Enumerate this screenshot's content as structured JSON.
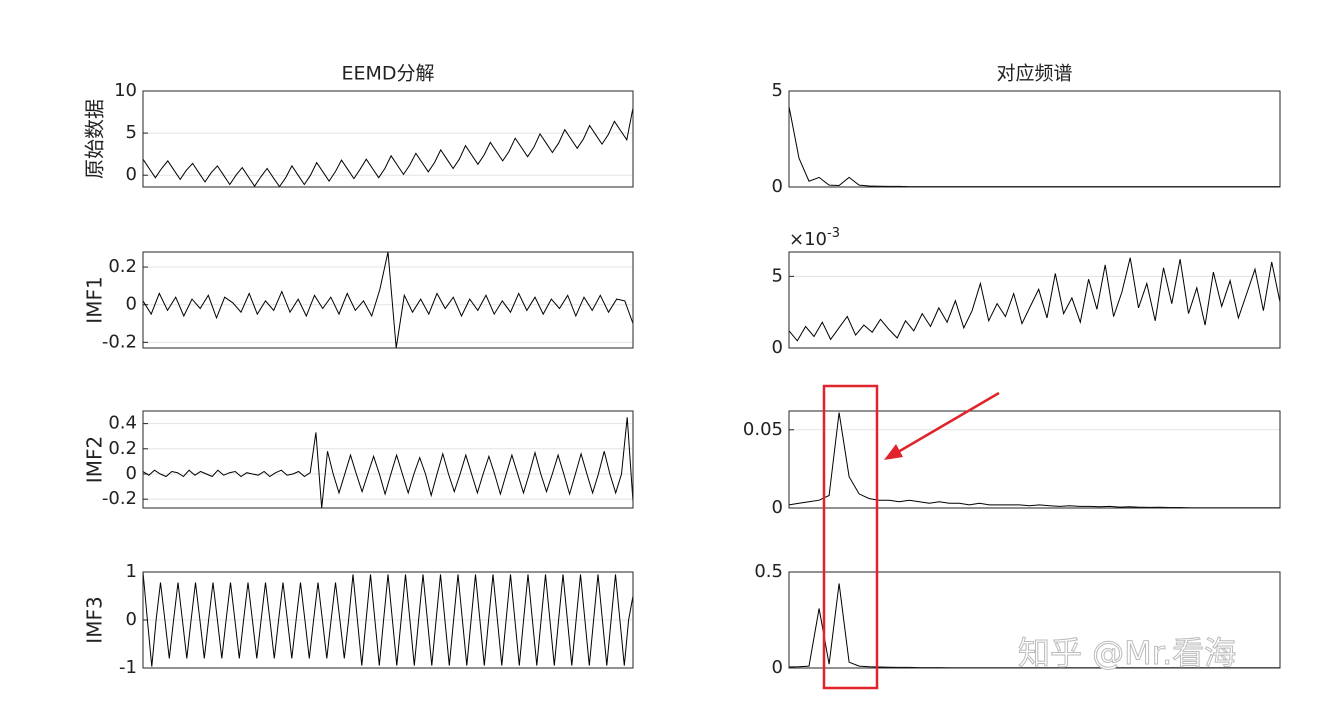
{
  "chart_data": [
    {
      "type": "line",
      "title": "EEMD分解",
      "ylabel": "原始数据",
      "color": "#000000",
      "grid": true,
      "ylim": [
        -1.4,
        10
      ],
      "yticks": [
        0,
        5,
        10
      ],
      "values": [
        1.9,
        0.8,
        -0.3,
        0.8,
        1.7,
        0.6,
        -0.5,
        0.6,
        1.4,
        0.3,
        -0.8,
        0.3,
        1.1,
        0.0,
        -1.1,
        0.0,
        0.9,
        -0.2,
        -1.3,
        -0.2,
        0.8,
        -0.3,
        -1.35,
        -0.3,
        1.1,
        0.0,
        -1.1,
        0.0,
        1.5,
        0.4,
        -0.7,
        0.4,
        1.8,
        0.7,
        -0.4,
        0.7,
        1.9,
        0.8,
        -0.3,
        0.8,
        2.3,
        1.2,
        0.1,
        1.2,
        2.6,
        1.5,
        0.4,
        1.5,
        3.0,
        1.9,
        0.8,
        1.9,
        3.5,
        2.4,
        1.3,
        2.4,
        3.9,
        2.8,
        1.7,
        2.8,
        4.4,
        3.3,
        2.2,
        3.3,
        4.9,
        3.8,
        2.7,
        3.8,
        5.4,
        4.3,
        3.2,
        4.3,
        5.9,
        4.8,
        3.7,
        4.8,
        6.4,
        5.3,
        4.2,
        8.0
      ]
    },
    {
      "type": "line",
      "title": "对应频谱",
      "color": "#000000",
      "grid": true,
      "ylim": [
        0,
        5
      ],
      "yticks": [
        0,
        5
      ],
      "values": [
        4.2,
        1.5,
        0.3,
        0.5,
        0.1,
        0.08,
        0.5,
        0.1,
        0.05,
        0.04,
        0.03,
        0.03,
        0.02,
        0.02,
        0.02,
        0.02,
        0.02,
        0.02,
        0.02,
        0.02,
        0.02,
        0.02,
        0.02,
        0.02,
        0.02,
        0.02,
        0.02,
        0.02,
        0.02,
        0.02,
        0.02,
        0.02,
        0.02,
        0.02,
        0.02,
        0.02,
        0.02,
        0.02,
        0.02,
        0.02,
        0.02,
        0.02,
        0.02,
        0.02,
        0.02,
        0.02,
        0.02,
        0.02,
        0.02,
        0.02
      ]
    },
    {
      "type": "line",
      "ylabel": "IMF1",
      "color": "#000000",
      "grid": true,
      "ylim": [
        -0.23,
        0.28
      ],
      "yticks": [
        -0.2,
        0,
        0.2
      ],
      "values": [
        0.02,
        -0.05,
        0.06,
        -0.03,
        0.04,
        -0.06,
        0.03,
        -0.02,
        0.05,
        -0.07,
        0.04,
        0.01,
        -0.04,
        0.06,
        -0.05,
        0.02,
        -0.03,
        0.07,
        -0.04,
        0.03,
        -0.06,
        0.05,
        -0.02,
        0.04,
        -0.05,
        0.06,
        -0.03,
        0.02,
        -0.06,
        0.08,
        0.28,
        -0.23,
        0.05,
        -0.04,
        0.03,
        -0.05,
        0.06,
        -0.02,
        0.04,
        -0.06,
        0.03,
        -0.03,
        0.05,
        -0.05,
        0.02,
        -0.04,
        0.06,
        -0.03,
        0.04,
        -0.05,
        0.03,
        -0.02,
        0.05,
        -0.06,
        0.04,
        -0.03,
        0.05,
        -0.04,
        0.03,
        0.02,
        -0.1
      ]
    },
    {
      "type": "line",
      "color": "#000000",
      "grid": true,
      "ylim": [
        0,
        0.0067
      ],
      "yticks": [
        0,
        {
          "value": 0.005,
          "label": "5"
        }
      ],
      "y_exponent": {
        "base": "×10",
        "power": "-3"
      },
      "values": [
        0.0012,
        0.0005,
        0.0015,
        0.0008,
        0.0018,
        0.0006,
        0.0014,
        0.0022,
        0.0009,
        0.0016,
        0.0011,
        0.002,
        0.0013,
        0.0007,
        0.0019,
        0.0012,
        0.0024,
        0.0015,
        0.0028,
        0.0018,
        0.0033,
        0.0014,
        0.0026,
        0.0045,
        0.0019,
        0.0031,
        0.0022,
        0.0038,
        0.0017,
        0.0029,
        0.0041,
        0.0021,
        0.0052,
        0.0024,
        0.0035,
        0.0018,
        0.0048,
        0.0027,
        0.0058,
        0.0022,
        0.0039,
        0.0063,
        0.0028,
        0.0045,
        0.0019,
        0.0056,
        0.0031,
        0.0062,
        0.0024,
        0.0042,
        0.0016,
        0.0053,
        0.0029,
        0.0047,
        0.0021,
        0.0038,
        0.0055,
        0.0026,
        0.006,
        0.0032
      ]
    },
    {
      "type": "line",
      "ylabel": "IMF2",
      "color": "#000000",
      "grid": true,
      "ylim": [
        -0.27,
        0.5
      ],
      "yticks": [
        -0.2,
        0,
        0.2,
        0.4
      ],
      "values": [
        0.02,
        -0.01,
        0.03,
        0.0,
        -0.02,
        0.02,
        0.01,
        -0.02,
        0.03,
        -0.01,
        0.02,
        0.0,
        -0.02,
        0.03,
        -0.01,
        0.01,
        0.02,
        -0.02,
        0.01,
        0.0,
        -0.01,
        0.02,
        -0.02,
        0.01,
        0.03,
        -0.01,
        0.0,
        0.02,
        -0.02,
        0.01,
        0.33,
        -0.27,
        0.18,
        0.0,
        -0.15,
        0.0,
        0.15,
        0.0,
        -0.14,
        0.0,
        0.14,
        0.0,
        -0.16,
        0.0,
        0.15,
        0.0,
        -0.15,
        0.0,
        0.13,
        0.0,
        -0.17,
        0.0,
        0.16,
        0.0,
        -0.14,
        0.0,
        0.15,
        0.0,
        -0.15,
        0.0,
        0.14,
        0.0,
        -0.16,
        0.0,
        0.15,
        0.0,
        -0.15,
        0.0,
        0.17,
        0.0,
        -0.14,
        0.0,
        0.15,
        0.0,
        -0.16,
        0.0,
        0.16,
        0.0,
        -0.15,
        0.0,
        0.18,
        0.0,
        -0.15,
        0.0,
        0.45,
        -0.22
      ]
    },
    {
      "type": "line",
      "color": "#000000",
      "grid": true,
      "ylim": [
        0,
        0.062
      ],
      "yticks": [
        0,
        0.05
      ],
      "values": [
        0.002,
        0.003,
        0.004,
        0.005,
        0.008,
        0.061,
        0.02,
        0.009,
        0.006,
        0.005,
        0.005,
        0.004,
        0.005,
        0.004,
        0.003,
        0.004,
        0.003,
        0.003,
        0.002,
        0.003,
        0.002,
        0.002,
        0.002,
        0.002,
        0.0015,
        0.002,
        0.0015,
        0.001,
        0.0015,
        0.001,
        0.001,
        0.0008,
        0.001,
        0.0006,
        0.0008,
        0.0005,
        0.0004,
        0.0005,
        0.0003,
        0.0003,
        0.0002,
        0.0002,
        0.0002,
        0.0001,
        0.0001,
        0.0001,
        0.0001,
        0.0001,
        0.0001,
        0.0001
      ]
    },
    {
      "type": "line",
      "ylabel": "IMF3",
      "color": "#000000",
      "grid": true,
      "ylim": [
        -1,
        1
      ],
      "yticks": [
        -1,
        0,
        1
      ],
      "values": [
        1.0,
        0,
        -0.97,
        0,
        0.78,
        0,
        -0.8,
        0,
        0.78,
        0,
        -0.8,
        0,
        0.78,
        0,
        -0.8,
        0,
        0.78,
        0,
        -0.8,
        0,
        0.78,
        0,
        -0.8,
        0,
        0.78,
        0,
        -0.8,
        0,
        0.78,
        0,
        -0.8,
        0,
        0.78,
        0,
        -0.8,
        0,
        0.78,
        0,
        -0.8,
        0,
        0.78,
        0,
        -0.8,
        0,
        0.78,
        0,
        -0.8,
        0,
        0.95,
        0,
        -0.95,
        0,
        0.95,
        0,
        -0.95,
        0,
        0.95,
        0,
        -0.95,
        0,
        0.95,
        0,
        -0.95,
        0,
        0.95,
        0,
        -0.95,
        0,
        0.95,
        0,
        -0.95,
        0,
        0.95,
        0,
        -0.95,
        0,
        0.95,
        0,
        -0.95,
        0,
        0.95,
        0,
        -0.95,
        0,
        0.95,
        0,
        -0.95,
        0,
        0.95,
        0,
        -0.95,
        0,
        0.95,
        0,
        -0.95,
        0,
        0.95,
        0,
        -0.95,
        0,
        0.95,
        0,
        -0.95,
        0,
        0.95,
        0,
        -0.95,
        0,
        0.95,
        0,
        -0.95,
        0,
        0.5
      ]
    },
    {
      "type": "line",
      "color": "#000000",
      "grid": true,
      "ylim": [
        0,
        0.5
      ],
      "yticks": [
        0,
        0.5
      ],
      "values": [
        0.005,
        0.006,
        0.01,
        0.31,
        0.02,
        0.44,
        0.03,
        0.01,
        0.006,
        0.005,
        0.004,
        0.003,
        0.003,
        0.002,
        0.002,
        0.002,
        0.001,
        0.001,
        0.001,
        0.001,
        0.001,
        0.001,
        0.001,
        0.001,
        0.001,
        0.001,
        0.001,
        0.001,
        0.001,
        0.001,
        0.001,
        0.001,
        0.001,
        0.001,
        0.001,
        0.001,
        0.001,
        0.001,
        0.001,
        0.001,
        0.001,
        0.001,
        0.001,
        0.001,
        0.001,
        0.001,
        0.001,
        0.001,
        0.001,
        0.001
      ]
    }
  ],
  "watermark": "知乎 @Mr.看海"
}
